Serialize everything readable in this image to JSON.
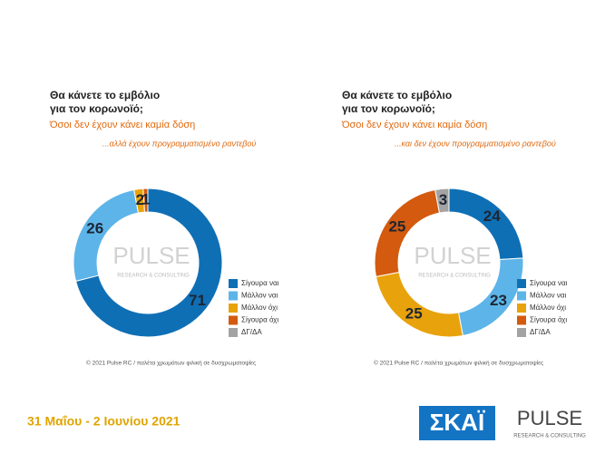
{
  "chart_data": [
    {
      "type": "pie",
      "title": [
        "Θα κάνετε το εμβόλιο",
        "για τον κορωνοϊό;"
      ],
      "subtitle": "Όσοι δεν έχουν κάνει καμία δόση",
      "note": "...αλλά έχουν προγραμματισμένο ραντεβού",
      "categories": [
        "Σίγουρα ναι",
        "Μάλλον ναι",
        "Μάλλον όχι",
        "Σίγουρα όχι",
        "ΔΓ/ΔΑ"
      ],
      "values": [
        71,
        26,
        2,
        1,
        0
      ],
      "colors": [
        "#0f6fb5",
        "#5db4e8",
        "#e8a20c",
        "#d35a0e",
        "#a3a3a3"
      ],
      "footer": "© 2021 Pulse RC  /  παλέτα χρωμάτων φιλική σε δυσχρωματοψίες"
    },
    {
      "type": "pie",
      "title": [
        "Θα κάνετε το εμβόλιο",
        "για τον κορωνοϊό;"
      ],
      "subtitle": "Όσοι δεν έχουν κάνει καμία δόση",
      "note": "...και δεν έχουν προγραμματισμένο ραντεβού",
      "categories": [
        "Σίγουρα ναι",
        "Μάλλον ναι",
        "Μάλλον όχι",
        "Σίγουρα όχι",
        "ΔΓ/ΔΑ"
      ],
      "values": [
        24,
        23,
        25,
        25,
        3
      ],
      "colors": [
        "#0f6fb5",
        "#5db4e8",
        "#e8a20c",
        "#d35a0e",
        "#a3a3a3"
      ],
      "footer": "© 2021 Pulse RC  /  παλέτα χρωμάτων φιλική σε δυσχρωματοψίες"
    }
  ],
  "watermark": {
    "name": "PULSE",
    "tagline": "RESEARCH & CONSULTING"
  },
  "date": "31 Μαΐου - 2 Ιουνίου 2021",
  "logos": {
    "skai": "ΣΚΑΪ",
    "pulse": "PULSE",
    "pulse_tagline": "RESEARCH & CONSULTING"
  }
}
